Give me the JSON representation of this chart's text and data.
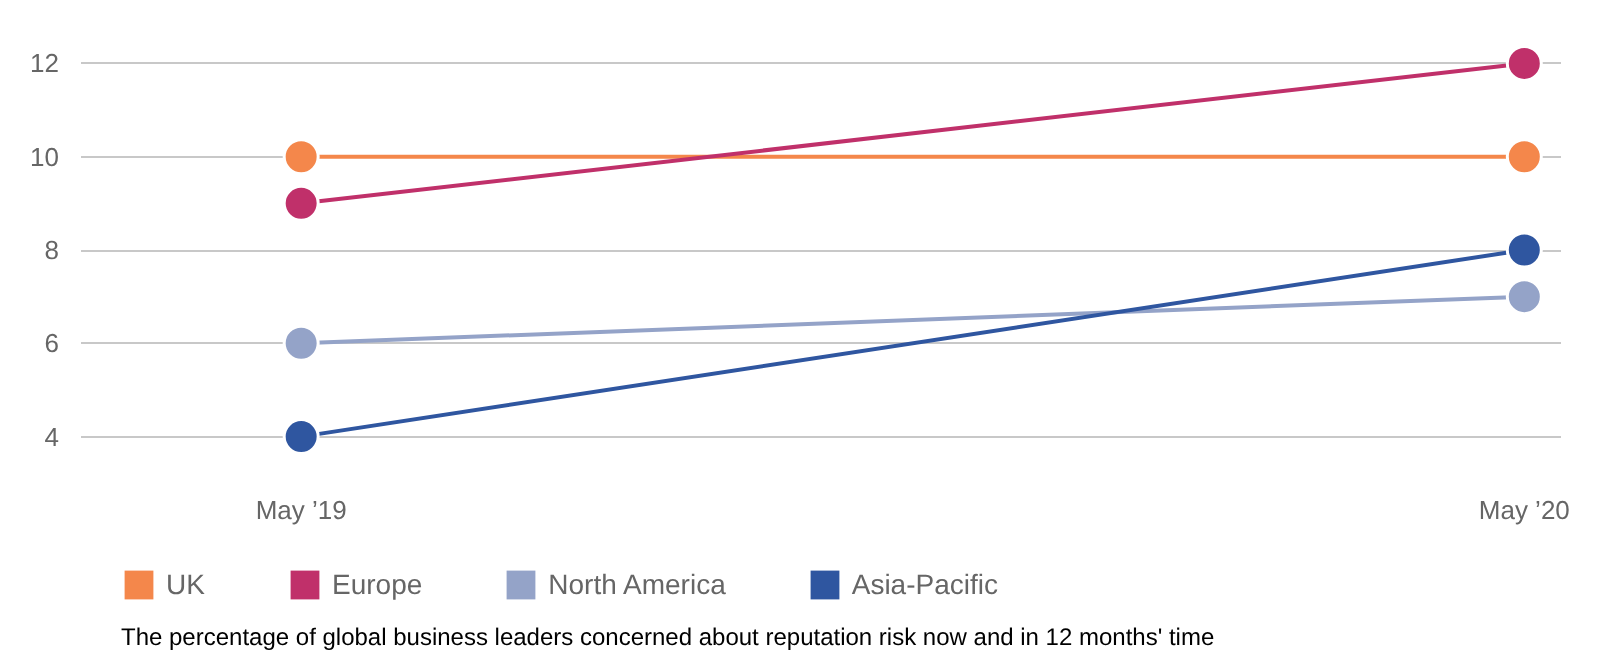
{
  "chart_data": {
    "type": "line",
    "categories": [
      "May ’19",
      "May ’20"
    ],
    "series": [
      {
        "name": "UK",
        "color": "#f4874b",
        "values": [
          10,
          10
        ]
      },
      {
        "name": "Europe",
        "color": "#c0306a",
        "values": [
          9,
          12
        ]
      },
      {
        "name": "North America",
        "color": "#94a3c8",
        "values": [
          6,
          7
        ]
      },
      {
        "name": "Asia-Pacific",
        "color": "#2f56a0",
        "values": [
          4,
          8
        ]
      }
    ],
    "ylim": [
      4,
      12
    ],
    "yticks": [
      4,
      6,
      8,
      10,
      12
    ],
    "grid": "y",
    "legend": "bottom left",
    "marker": "circle",
    "line_style": "solid",
    "annotations": [
      "The percentage of global business leaders concerned about reputation risk now and in 12 months' time"
    ]
  }
}
